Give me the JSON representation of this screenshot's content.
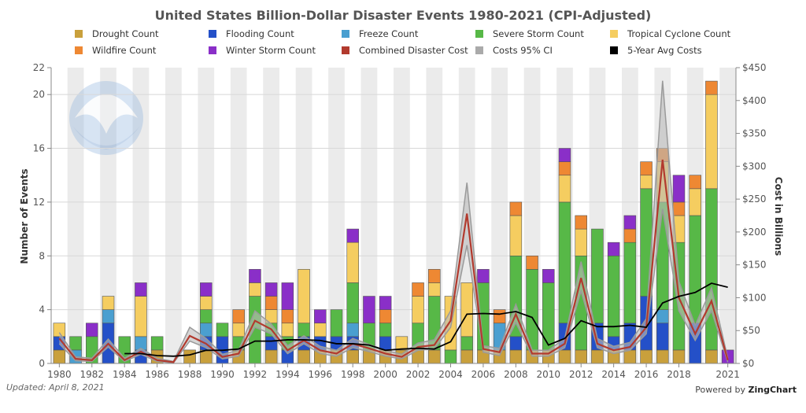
{
  "chart_data": {
    "type": "bar",
    "title": "United States Billion-Dollar Disaster Events 1980-2021 (CPI-Adjusted)",
    "ylabel": "Number of Events",
    "y2label": "Cost in Billions",
    "ylim": [
      0,
      22
    ],
    "y2lim": [
      0,
      450
    ],
    "y_ticks": [
      "0",
      "4",
      "8",
      "12",
      "16",
      "20",
      "22"
    ],
    "y2_ticks": [
      "$0",
      "$50",
      "$100",
      "$150",
      "$200",
      "$250",
      "$300",
      "$350",
      "$400",
      "$450"
    ],
    "x_tick_labels": [
      "1980",
      "1982",
      "1984",
      "1986",
      "1988",
      "1990",
      "1992",
      "1994",
      "1996",
      "1998",
      "2000",
      "2002",
      "2004",
      "2006",
      "2008",
      "2010",
      "2012",
      "2014",
      "2016",
      "2018",
      "2021"
    ],
    "categories": [
      "1980",
      "1981",
      "1982",
      "1983",
      "1984",
      "1985",
      "1986",
      "1987",
      "1988",
      "1989",
      "1990",
      "1991",
      "1992",
      "1993",
      "1994",
      "1995",
      "1996",
      "1997",
      "1998",
      "1999",
      "2000",
      "2001",
      "2002",
      "2003",
      "2004",
      "2005",
      "2006",
      "2007",
      "2008",
      "2009",
      "2010",
      "2011",
      "2012",
      "2013",
      "2014",
      "2015",
      "2016",
      "2017",
      "2018",
      "2019",
      "2020",
      "2021"
    ],
    "stack_order": [
      "Drought Count",
      "Flooding Count",
      "Freeze Count",
      "Severe Storm Count",
      "Tropical Cyclone Count",
      "Wildfire Count",
      "Winter Storm Count"
    ],
    "series": [
      {
        "name": "Drought Count",
        "color": "#c9a03c",
        "values": [
          1,
          0,
          0,
          0,
          0,
          0,
          1,
          0,
          1,
          1,
          0,
          1,
          0,
          1,
          0,
          1,
          1,
          1,
          1,
          1,
          1,
          1,
          1,
          1,
          0,
          1,
          1,
          1,
          1,
          1,
          1,
          1,
          1,
          1,
          1,
          1,
          1,
          1,
          1,
          0,
          1,
          0
        ]
      },
      {
        "name": "Flooding Count",
        "color": "#2450c8",
        "values": [
          1,
          0,
          0,
          3,
          0,
          1,
          0,
          0,
          0,
          1,
          2,
          0,
          0,
          1,
          1,
          1,
          1,
          1,
          1,
          0,
          1,
          0,
          0,
          0,
          0,
          0,
          0,
          0,
          1,
          0,
          0,
          2,
          0,
          2,
          1,
          2,
          4,
          2,
          0,
          3,
          0,
          0
        ]
      },
      {
        "name": "Freeze Count",
        "color": "#4a9fd0",
        "values": [
          0,
          1,
          0,
          1,
          0,
          1,
          0,
          0,
          0,
          1,
          0,
          0,
          0,
          0,
          0,
          0,
          0,
          0,
          1,
          0,
          0,
          0,
          0,
          0,
          0,
          0,
          0,
          2,
          0,
          0,
          0,
          0,
          0,
          0,
          0,
          0,
          0,
          1,
          0,
          0,
          0,
          0
        ]
      },
      {
        "name": "Severe Storm Count",
        "color": "#57b847",
        "values": [
          0,
          1,
          2,
          0,
          2,
          0,
          1,
          0,
          0,
          1,
          1,
          1,
          5,
          1,
          1,
          1,
          0,
          2,
          3,
          2,
          1,
          0,
          2,
          4,
          1,
          1,
          5,
          0,
          6,
          6,
          5,
          9,
          7,
          7,
          6,
          6,
          8,
          8,
          8,
          8,
          12,
          0
        ]
      },
      {
        "name": "Tropical Cyclone Count",
        "color": "#f5cd60",
        "values": [
          1,
          0,
          0,
          1,
          0,
          3,
          0,
          0,
          0,
          1,
          0,
          1,
          1,
          1,
          1,
          4,
          1,
          0,
          3,
          0,
          0,
          1,
          2,
          1,
          4,
          4,
          0,
          0,
          3,
          0,
          0,
          2,
          2,
          0,
          0,
          0,
          1,
          3,
          2,
          2,
          7,
          0
        ]
      },
      {
        "name": "Wildfire Count",
        "color": "#ee8833",
        "values": [
          0,
          0,
          0,
          0,
          0,
          0,
          0,
          0,
          0,
          0,
          0,
          1,
          0,
          1,
          1,
          0,
          0,
          0,
          0,
          0,
          1,
          0,
          1,
          1,
          0,
          0,
          0,
          1,
          1,
          1,
          0,
          1,
          1,
          0,
          0,
          1,
          1,
          1,
          1,
          1,
          1,
          0
        ]
      },
      {
        "name": "Winter Storm Count",
        "color": "#8a2fc8",
        "values": [
          0,
          0,
          1,
          0,
          0,
          1,
          0,
          0,
          0,
          1,
          0,
          0,
          1,
          1,
          2,
          0,
          1,
          0,
          1,
          2,
          1,
          0,
          0,
          0,
          0,
          0,
          1,
          0,
          0,
          0,
          1,
          1,
          0,
          0,
          1,
          1,
          0,
          0,
          2,
          0,
          0,
          1
        ]
      }
    ],
    "line_series": [
      {
        "name": "Combined Disaster Cost",
        "color": "#b23a2e",
        "values": [
          38,
          7,
          5,
          30,
          5,
          18,
          5,
          2,
          42,
          30,
          10,
          15,
          65,
          52,
          20,
          35,
          20,
          15,
          30,
          23,
          15,
          10,
          25,
          28,
          65,
          228,
          22,
          17,
          75,
          15,
          15,
          30,
          130,
          30,
          20,
          25,
          55,
          310,
          100,
          45,
          95,
          5
        ]
      },
      {
        "name": "Costs 95% CI",
        "color": "#999999",
        "lower": [
          30,
          4,
          3,
          25,
          3,
          14,
          3,
          1,
          34,
          24,
          7,
          11,
          55,
          45,
          15,
          30,
          15,
          11,
          24,
          18,
          11,
          7,
          20,
          22,
          55,
          180,
          17,
          12,
          62,
          11,
          11,
          24,
          110,
          24,
          15,
          20,
          45,
          235,
          80,
          35,
          80,
          2
        ],
        "upper": [
          47,
          10,
          8,
          37,
          8,
          23,
          8,
          3,
          55,
          38,
          14,
          20,
          80,
          60,
          27,
          42,
          26,
          20,
          38,
          29,
          20,
          14,
          31,
          36,
          80,
          275,
          27,
          23,
          90,
          20,
          20,
          38,
          155,
          38,
          26,
          32,
          68,
          430,
          125,
          58,
          115,
          8
        ]
      },
      {
        "name": "5-Year Avg Costs",
        "color": "#000000",
        "values": [
          null,
          null,
          null,
          null,
          15,
          15,
          12,
          11,
          13,
          20,
          20,
          22,
          34,
          34,
          36,
          36,
          35,
          30,
          30,
          28,
          20,
          22,
          23,
          22,
          33,
          75,
          76,
          75,
          79,
          70,
          28,
          38,
          65,
          56,
          56,
          58,
          55,
          92,
          102,
          108,
          122,
          116
        ]
      }
    ],
    "legend": [
      {
        "label": "Drought Count",
        "color": "#c9a03c",
        "shape": "square"
      },
      {
        "label": "Flooding Count",
        "color": "#2450c8",
        "shape": "square"
      },
      {
        "label": "Freeze Count",
        "color": "#4a9fd0",
        "shape": "square"
      },
      {
        "label": "Severe Storm Count",
        "color": "#57b847",
        "shape": "square"
      },
      {
        "label": "Tropical Cyclone Count",
        "color": "#f5cd60",
        "shape": "square"
      },
      {
        "label": "Wildfire Count",
        "color": "#ee8833",
        "shape": "square"
      },
      {
        "label": "Winter Storm Count",
        "color": "#8a2fc8",
        "shape": "square"
      },
      {
        "label": "Combined Disaster Cost",
        "color": "#b23a2e",
        "shape": "square"
      },
      {
        "label": "Costs 95% CI",
        "color": "#aaaaaa",
        "shape": "square"
      },
      {
        "label": "5-Year Avg Costs",
        "color": "#000000",
        "shape": "square"
      }
    ],
    "legend_placement": "top",
    "grid": true
  },
  "watermark_text": "NOAA",
  "footer": {
    "updated": "Updated: April 8, 2021",
    "powered_prefix": "Powered by ",
    "powered_brand": "ZingChart"
  }
}
